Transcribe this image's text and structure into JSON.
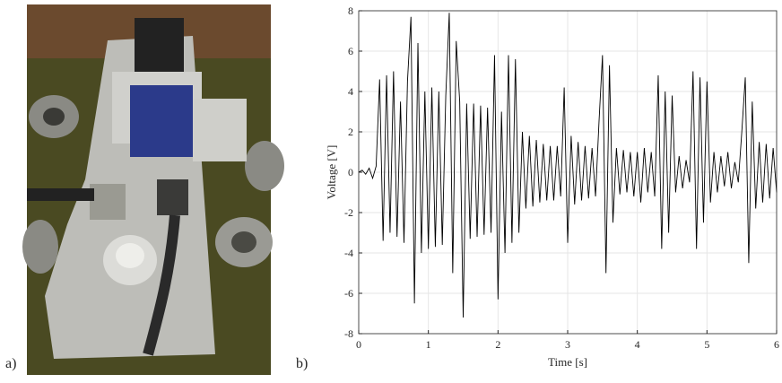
{
  "labels": {
    "a": "a)",
    "b": "b)"
  },
  "chart_data": {
    "type": "line",
    "xlabel": "Time [s]",
    "ylabel": "Voltage [V]",
    "xlim": [
      0,
      6
    ],
    "ylim": [
      -8,
      8
    ],
    "xticks": [
      0,
      1,
      2,
      3,
      4,
      5,
      6
    ],
    "yticks": [
      -8,
      -6,
      -4,
      -2,
      0,
      2,
      4,
      6,
      8
    ],
    "grid": true,
    "x": [
      0,
      0.05,
      0.1,
      0.15,
      0.2,
      0.25,
      0.3,
      0.35,
      0.4,
      0.45,
      0.5,
      0.55,
      0.6,
      0.65,
      0.7,
      0.75,
      0.8,
      0.85,
      0.9,
      0.95,
      1,
      1.05,
      1.1,
      1.15,
      1.2,
      1.25,
      1.3,
      1.35,
      1.4,
      1.45,
      1.5,
      1.55,
      1.6,
      1.65,
      1.7,
      1.75,
      1.8,
      1.85,
      1.9,
      1.95,
      2,
      2.05,
      2.1,
      2.15,
      2.2,
      2.25,
      2.3,
      2.35,
      2.4,
      2.45,
      2.5,
      2.55,
      2.6,
      2.65,
      2.7,
      2.75,
      2.8,
      2.85,
      2.9,
      2.95,
      3,
      3.05,
      3.1,
      3.15,
      3.2,
      3.25,
      3.3,
      3.35,
      3.4,
      3.45,
      3.5,
      3.55,
      3.6,
      3.65,
      3.7,
      3.75,
      3.8,
      3.85,
      3.9,
      3.95,
      4,
      4.05,
      4.1,
      4.15,
      4.2,
      4.25,
      4.3,
      4.35,
      4.4,
      4.45,
      4.5,
      4.55,
      4.6,
      4.65,
      4.7,
      4.75,
      4.8,
      4.85,
      4.9,
      4.95,
      5,
      5.05,
      5.1,
      5.15,
      5.2,
      5.25,
      5.3,
      5.35,
      5.4,
      5.45,
      5.5,
      5.55,
      5.6,
      5.65,
      5.7,
      5.75,
      5.8,
      5.85,
      5.9,
      5.95,
      6
    ],
    "series": [
      {
        "color": "#000000",
        "values": [
          0,
          0.1,
          -0.1,
          0.2,
          -0.3,
          0.3,
          4.6,
          -3.4,
          4.8,
          -3.0,
          5.0,
          -3.2,
          3.5,
          -3.5,
          4.5,
          7.7,
          -6.5,
          6.4,
          -4.0,
          4.0,
          -3.8,
          4.2,
          -3.7,
          4.0,
          -3.6,
          3.8,
          7.9,
          -5.0,
          6.5,
          3.5,
          -7.2,
          3.4,
          -3.3,
          3.4,
          -3.2,
          3.3,
          -3.1,
          3.2,
          -3.0,
          5.8,
          -6.3,
          3.0,
          -4.0,
          5.8,
          -3.5,
          5.6,
          -3.0,
          2.0,
          -1.8,
          1.8,
          -1.7,
          1.6,
          -1.5,
          1.4,
          -1.4,
          1.3,
          -1.4,
          1.3,
          -1.2,
          4.2,
          -3.5,
          1.8,
          -1.6,
          1.5,
          -1.4,
          1.3,
          -1.3,
          1.2,
          -1.2,
          2.5,
          5.8,
          -5.0,
          5.3,
          -2.5,
          1.2,
          -1.1,
          1.1,
          -1.0,
          1.0,
          -1.2,
          1.0,
          -1.5,
          1.2,
          -1.0,
          1.0,
          -1.2,
          4.8,
          -3.8,
          4.0,
          -3.0,
          3.8,
          -1.0,
          0.8,
          -0.8,
          0.6,
          -0.5,
          5.0,
          -3.8,
          4.7,
          -2.5,
          4.5,
          -1.5,
          1.0,
          -1.0,
          0.8,
          -0.7,
          1.0,
          -0.8,
          0.5,
          -0.5,
          2.0,
          4.7,
          -4.5,
          3.5,
          -1.8,
          1.5,
          -1.5,
          1.4,
          -1.3,
          1.2,
          -1.0
        ]
      }
    ]
  }
}
